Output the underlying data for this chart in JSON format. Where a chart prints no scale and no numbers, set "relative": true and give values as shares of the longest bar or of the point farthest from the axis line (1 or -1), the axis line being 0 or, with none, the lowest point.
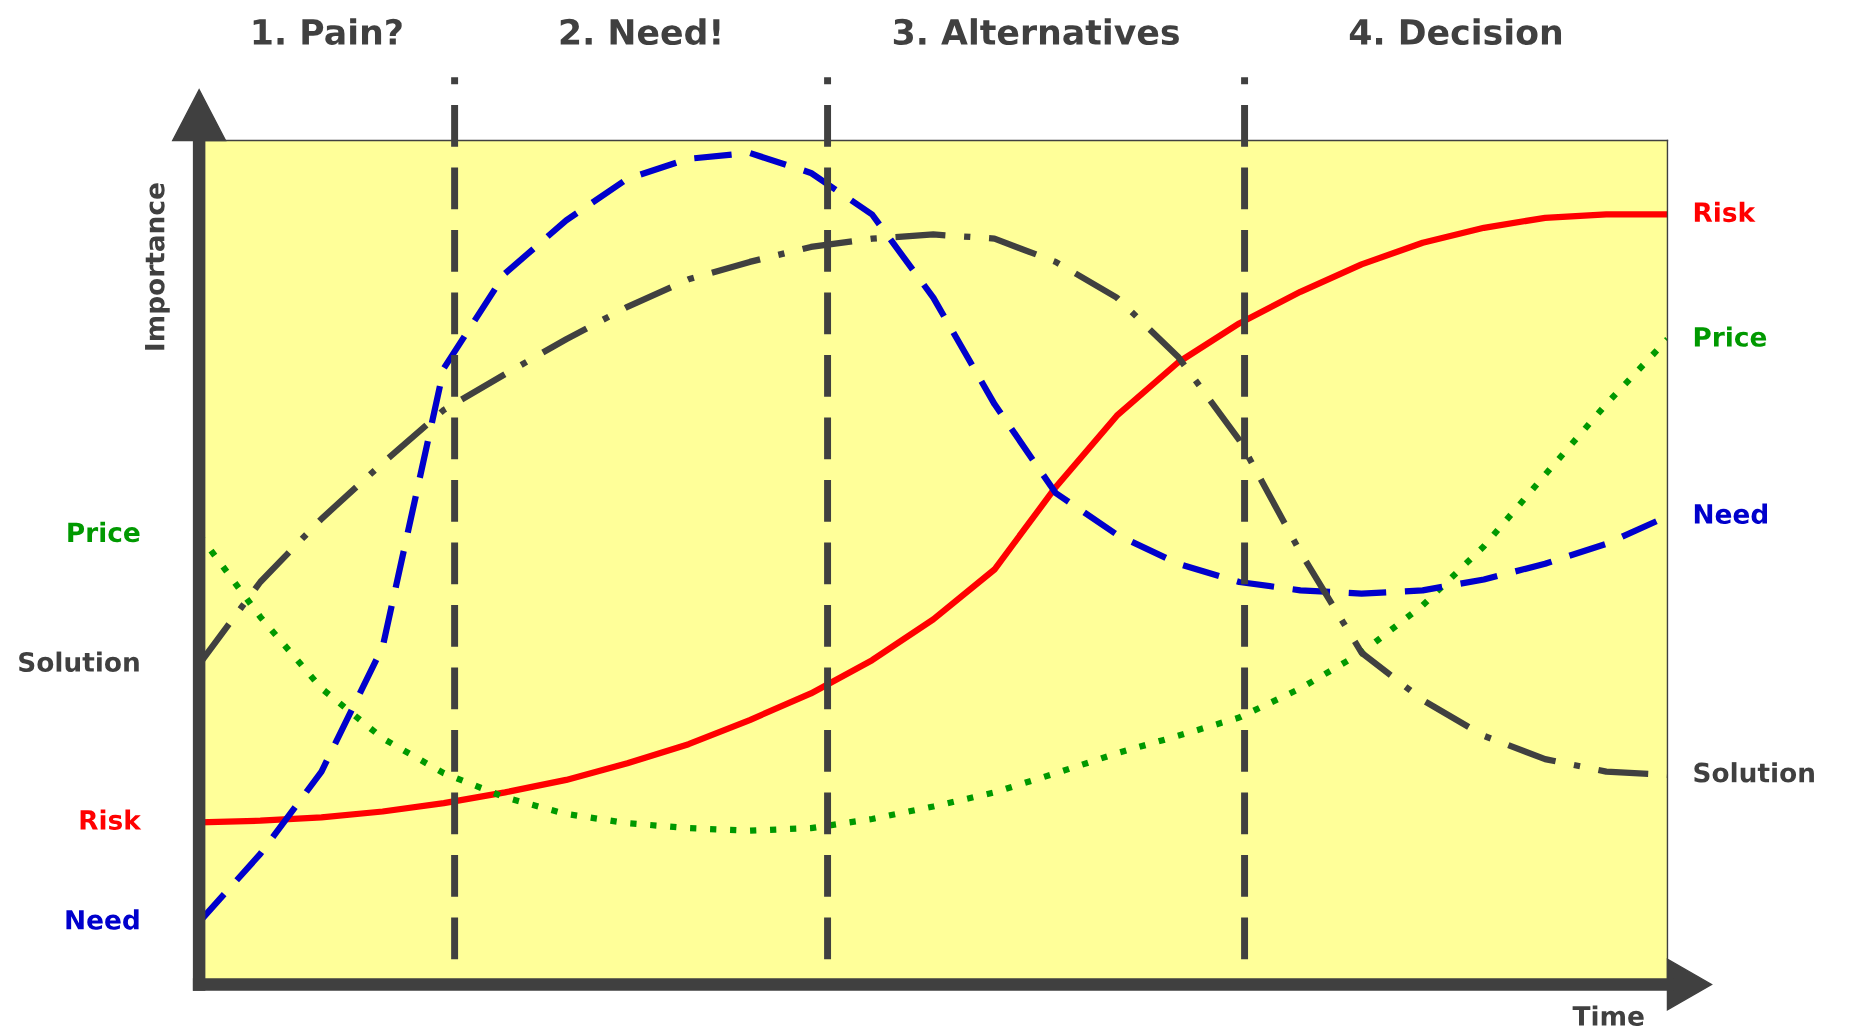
{
  "chart_data": {
    "type": "line",
    "relative": true,
    "xlabel": "Time",
    "ylabel": "Importance",
    "categories": [
      null,
      null,
      null,
      null,
      null,
      null,
      null,
      null,
      null,
      null,
      null,
      null,
      null,
      null,
      null,
      null,
      null,
      null,
      null,
      null,
      null,
      null,
      null,
      null,
      null
    ],
    "series": [
      {
        "name": "Risk",
        "color": "#ff0000",
        "line_style": "solid",
        "values": [
          0.195,
          0.197,
          0.201,
          0.208,
          0.218,
          0.231,
          0.246,
          0.266,
          0.289,
          0.318,
          0.35,
          0.39,
          0.439,
          0.499,
          0.598,
          0.684,
          0.748,
          0.795,
          0.833,
          0.866,
          0.892,
          0.91,
          0.922,
          0.926,
          0.926
        ]
      },
      {
        "name": "Price",
        "color": "#009900",
        "line_style": "dotted",
        "values": [
          0.541,
          0.442,
          0.356,
          0.296,
          0.254,
          0.225,
          0.205,
          0.194,
          0.188,
          0.185,
          0.188,
          0.199,
          0.214,
          0.231,
          0.254,
          0.278,
          0.299,
          0.321,
          0.356,
          0.399,
          0.456,
          0.527,
          0.613,
          0.698,
          0.776
        ]
      },
      {
        "name": "Need",
        "color": "#0000cc",
        "line_style": "dashed",
        "values": [
          0.075,
          0.157,
          0.256,
          0.406,
          0.741,
          0.855,
          0.919,
          0.969,
          0.993,
          1.0,
          0.976,
          0.926,
          0.826,
          0.698,
          0.591,
          0.541,
          0.506,
          0.484,
          0.474,
          0.47,
          0.474,
          0.487,
          0.506,
          0.53,
          0.563
        ]
      },
      {
        "name": "Solution",
        "color": "#404040",
        "line_style": "dashdot",
        "values": [
          0.385,
          0.484,
          0.56,
          0.627,
          0.691,
          0.734,
          0.776,
          0.815,
          0.848,
          0.869,
          0.887,
          0.897,
          0.902,
          0.897,
          0.869,
          0.826,
          0.755,
          0.655,
          0.52,
          0.399,
          0.342,
          0.299,
          0.271,
          0.256,
          0.252
        ]
      }
    ],
    "annotations": [
      "1. Pain?",
      "2. Need!",
      "3. Alternatives",
      "4. Decision"
    ],
    "legend": false,
    "marker": "none"
  }
}
